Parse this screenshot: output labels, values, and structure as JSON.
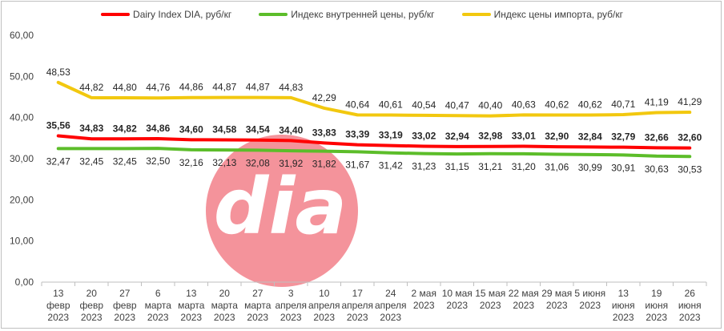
{
  "chart_data": {
    "type": "line",
    "title": "",
    "xlabel": "",
    "ylabel": "",
    "ylim": [
      0,
      60
    ],
    "yticks": [
      "0,00",
      "10,00",
      "20,00",
      "30,00",
      "40,00",
      "50,00",
      "60,00"
    ],
    "grid": false,
    "legend_position": "top",
    "categories": [
      [
        "13",
        "февр",
        "2023"
      ],
      [
        "20",
        "февр",
        "2023"
      ],
      [
        "27",
        "февр",
        "2023"
      ],
      [
        "6",
        "марта",
        "2023"
      ],
      [
        "13",
        "марта",
        "2023"
      ],
      [
        "20",
        "марта",
        "2023"
      ],
      [
        "27",
        "марта",
        "2023"
      ],
      [
        "3",
        "апреля",
        "2023"
      ],
      [
        "10",
        "апреля",
        "2023"
      ],
      [
        "17",
        "апреля",
        "2023"
      ],
      [
        "24",
        "апреля",
        "2023"
      ],
      [
        "2 мая",
        "2023"
      ],
      [
        "10 мая",
        "2023"
      ],
      [
        "15 мая",
        "2023"
      ],
      [
        "22 мая",
        "2023"
      ],
      [
        "29 мая",
        "2023"
      ],
      [
        "5 июня",
        "2023"
      ],
      [
        "13",
        "июня",
        "2023"
      ],
      [
        "19",
        "июня",
        "2023"
      ],
      [
        "26",
        "июня",
        "2023"
      ]
    ],
    "series": [
      {
        "name": "Dairy Index DIA,  руб/кг",
        "color": "#ff0000",
        "label_bold": true,
        "label_position": "above",
        "values": [
          35.56,
          34.83,
          34.82,
          34.86,
          34.6,
          34.58,
          34.54,
          34.4,
          33.83,
          33.39,
          33.19,
          33.02,
          32.94,
          32.98,
          33.01,
          32.9,
          32.84,
          32.79,
          32.66,
          32.6
        ],
        "labels": [
          "35,56",
          "34,83",
          "34,82",
          "34,86",
          "34,60",
          "34,58",
          "34,54",
          "34,40",
          "33,83",
          "33,39",
          "33,19",
          "33,02",
          "32,94",
          "32,98",
          "33,01",
          "32,90",
          "32,84",
          "32,79",
          "32,66",
          "32,60"
        ]
      },
      {
        "name": "Индекс внутренней цены, руб/кг",
        "color": "#5cbd2a",
        "label_bold": false,
        "label_position": "below",
        "values": [
          32.47,
          32.45,
          32.45,
          32.5,
          32.16,
          32.13,
          32.08,
          31.92,
          31.82,
          31.67,
          31.42,
          31.23,
          31.15,
          31.21,
          31.2,
          31.06,
          30.99,
          30.91,
          30.63,
          30.53
        ],
        "labels": [
          "32,47",
          "32,45",
          "32,45",
          "32,50",
          "32,16",
          "32,13",
          "32,08",
          "31,92",
          "31,82",
          "31,67",
          "31,42",
          "31,23",
          "31,15",
          "31,21",
          "31,20",
          "31,06",
          "30,99",
          "30,91",
          "30,63",
          "30,53"
        ]
      },
      {
        "name": "Индекс цены импорта, руб/кг",
        "color": "#f2c80f",
        "label_bold": false,
        "label_position": "above",
        "values": [
          48.53,
          44.82,
          44.8,
          44.76,
          44.86,
          44.87,
          44.87,
          44.83,
          42.29,
          40.64,
          40.61,
          40.54,
          40.47,
          40.4,
          40.63,
          40.62,
          40.62,
          40.71,
          41.19,
          41.29
        ],
        "labels": [
          "48,53",
          "44,82",
          "44,80",
          "44,76",
          "44,86",
          "44,87",
          "44,87",
          "44,83",
          "42,29",
          "40,64",
          "40,61",
          "40,54",
          "40,47",
          "40,40",
          "40,63",
          "40,62",
          "40,62",
          "40,71",
          "41,19",
          "41,29"
        ]
      }
    ]
  },
  "watermark": {
    "text": "dia",
    "circle_color": "#f4939b",
    "text_color": "#ffffff"
  }
}
